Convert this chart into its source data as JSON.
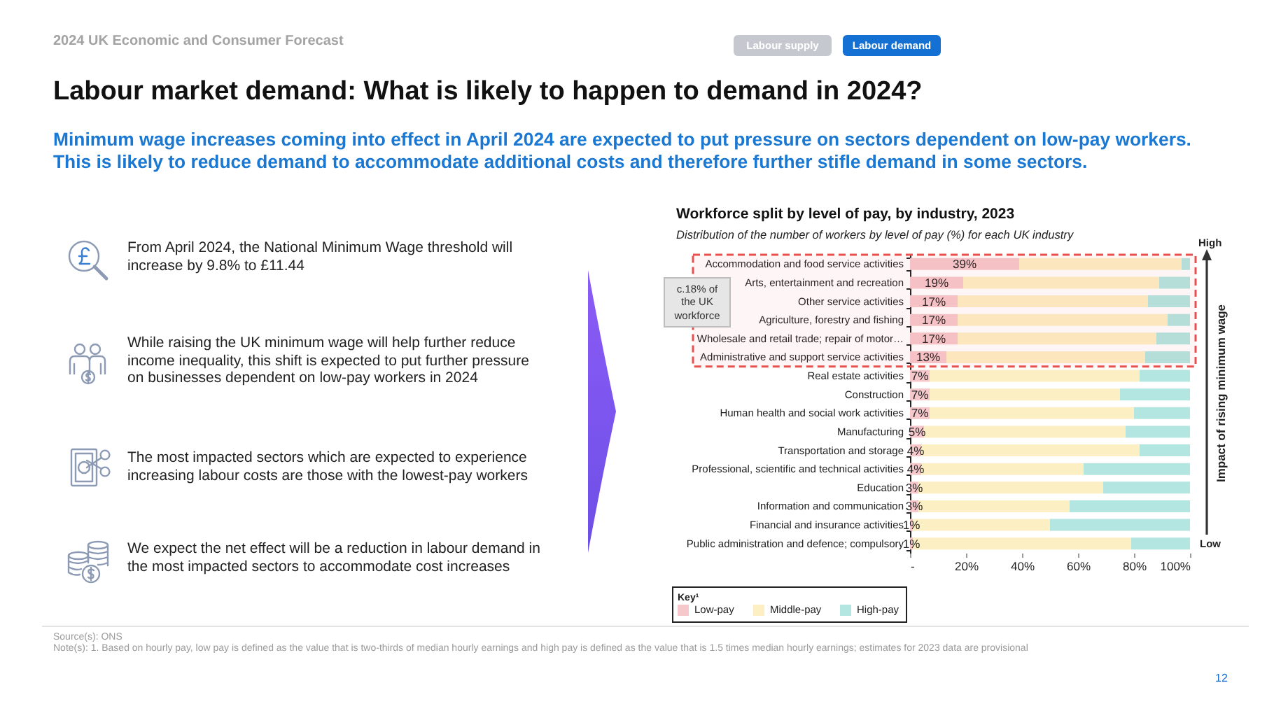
{
  "chart_data": [
    {
      "type": "other",
      "title": "Labour market demand: What is likely to happen to demand in 2024?",
      "subtitle": "Minimum wage increases coming into effect in April 2024 are expected to put pressure on sectors dependent on low-pay workers. This is likely to reduce demand to accommodate additional costs and therefore further stifle demand in some sectors.",
      "annotations": [
        "2024 UK Economic and Consumer Forecast",
        "Labour supply",
        "Labour demand",
        "From April 2024, the National Minimum Wage threshold will increase by 9.8% to £11.44",
        "While raising the UK minimum wage will help further reduce income inequality, this shift is expected to put further pressure on businesses dependent on low-pay workers in 2024",
        "The most impacted sectors which are expected to experience increasing labour costs are those with the lowest-pay workers",
        "We expect the net effect will be a reduction in labour demand in the most impacted sectors to accommodate cost increases",
        "12"
      ]
    },
    {
      "type": "bar",
      "orientation": "horizontal",
      "stacked": true,
      "title": "Workforce split by level of pay, by industry, 2023",
      "subtitle": "Distribution of the number of workers by level of pay (%) for each UK industry",
      "categories": [
        "Accommodation and food service activities",
        "Arts, entertainment and recreation",
        "Other service activities",
        "Agriculture, forestry and fishing",
        "Wholesale and retail trade; repair of motor…",
        "Administrative and support service activities",
        "Real estate activities",
        "Construction",
        "Human health and social work activities",
        "Manufacturing",
        "Transportation and storage",
        "Professional, scientific and technical activities",
        "Education",
        "Information and communication",
        "Financial and insurance activities",
        "Public administration and defence; compulsory"
      ],
      "series": [
        {
          "name": "Low-pay",
          "color": "#f6c8cc",
          "values": [
            39,
            19,
            17,
            17,
            17,
            13,
            7,
            7,
            7,
            5,
            4,
            4,
            3,
            3,
            1,
            1
          ],
          "value_labels": [
            "39%",
            "19%",
            "17%",
            "17%",
            "17%",
            "13%",
            "7%",
            "7%",
            "7%",
            "5%",
            "4%",
            "4%",
            "3%",
            "3%",
            "1%",
            "1%"
          ]
        },
        {
          "name": "Middle-pay",
          "color": "#fdefc4",
          "values": [
            58,
            70,
            68,
            75,
            71,
            71,
            75,
            68,
            73,
            72,
            78,
            58,
            66,
            54,
            49,
            78
          ]
        },
        {
          "name": "High-pay",
          "color": "#b3e6e0",
          "values": [
            3,
            11,
            15,
            8,
            12,
            16,
            18,
            25,
            20,
            23,
            18,
            38,
            31,
            43,
            50,
            21
          ]
        }
      ],
      "xlim": [
        0,
        100
      ],
      "xticks": [
        {
          "value": 0,
          "label": "-"
        },
        {
          "value": 20,
          "label": "20%"
        },
        {
          "value": 40,
          "label": "40%"
        },
        {
          "value": 60,
          "label": "60%"
        },
        {
          "value": 80,
          "label": "80%"
        },
        {
          "value": 100,
          "label": "100%"
        }
      ],
      "legend": "bottom left",
      "legend_title": "Key¹",
      "bands": [
        {
          "axis": "y",
          "from": "Accommodation and food service activities",
          "to": "Administrative and support service activities",
          "label": "c.18% of the UK workforce",
          "color": "#e8504f"
        }
      ],
      "annotations": [
        "High",
        "Low",
        "Impact of rising minimum wage",
        "Source(s): ONS",
        "Note(s): 1. Based on hourly pay, low pay is defined as the value that is two-thirds of median hourly earnings and high pay is defined as the value that is 1.5 times median hourly earnings; estimates for 2023 data are provisional"
      ]
    }
  ]
}
